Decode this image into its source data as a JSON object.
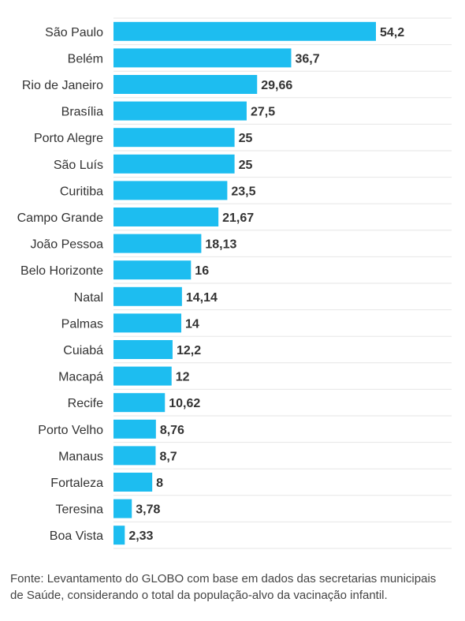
{
  "chart_data": {
    "type": "bar",
    "orientation": "horizontal",
    "categories": [
      "São Paulo",
      "Belém",
      "Rio de Janeiro",
      "Brasília",
      "Porto Alegre",
      "São Luís",
      "Curitiba",
      "Campo Grande",
      "João Pessoa",
      "Belo Horizonte",
      "Natal",
      "Palmas",
      "Cuiabá",
      "Macapá",
      "Recife",
      "Porto Velho",
      "Manaus",
      "Fortaleza",
      "Teresina",
      "Boa Vista"
    ],
    "values": [
      54.2,
      36.7,
      29.66,
      27.5,
      25,
      25,
      23.5,
      21.67,
      18.13,
      16,
      14.14,
      14,
      12.2,
      12,
      10.62,
      8.76,
      8.7,
      8,
      3.78,
      2.33
    ],
    "value_labels": [
      "54,2",
      "36,7",
      "29,66",
      "27,5",
      "25",
      "25",
      "23,5",
      "21,67",
      "18,13",
      "16",
      "14,14",
      "14",
      "12,2",
      "12",
      "10,62",
      "8,76",
      "8,7",
      "8",
      "3,78",
      "2,33"
    ],
    "xlim": [
      0,
      54.2
    ],
    "grid": true,
    "bar_color": "#1dbdf0",
    "title": "",
    "xlabel": "",
    "ylabel": ""
  },
  "footer": {
    "source": "Fonte: Levantamento do GLOBO com base em dados das secretarias municipais de Saúde, considerando o total da população-alvo da vacinação infantil."
  }
}
